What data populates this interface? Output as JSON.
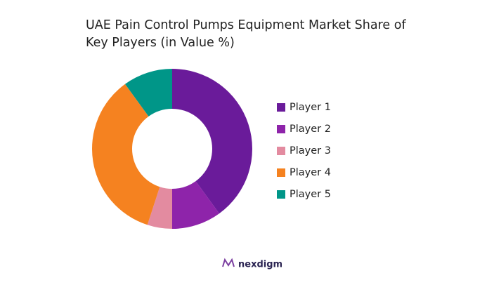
{
  "chart_data": {
    "type": "donut",
    "title": "UAE Pain Control Pumps Equipment Market Share of Key Players (in Value %)",
    "categories": [
      "Player 1",
      "Player 2",
      "Player 3",
      "Player 4",
      "Player 5"
    ],
    "values": [
      40,
      10,
      5,
      35,
      10
    ],
    "colors": [
      "#6a1b9a",
      "#8e24aa",
      "#e38ba0",
      "#f58220",
      "#009688"
    ],
    "legend": "right"
  },
  "footer": {
    "logo": "nexdigm"
  }
}
